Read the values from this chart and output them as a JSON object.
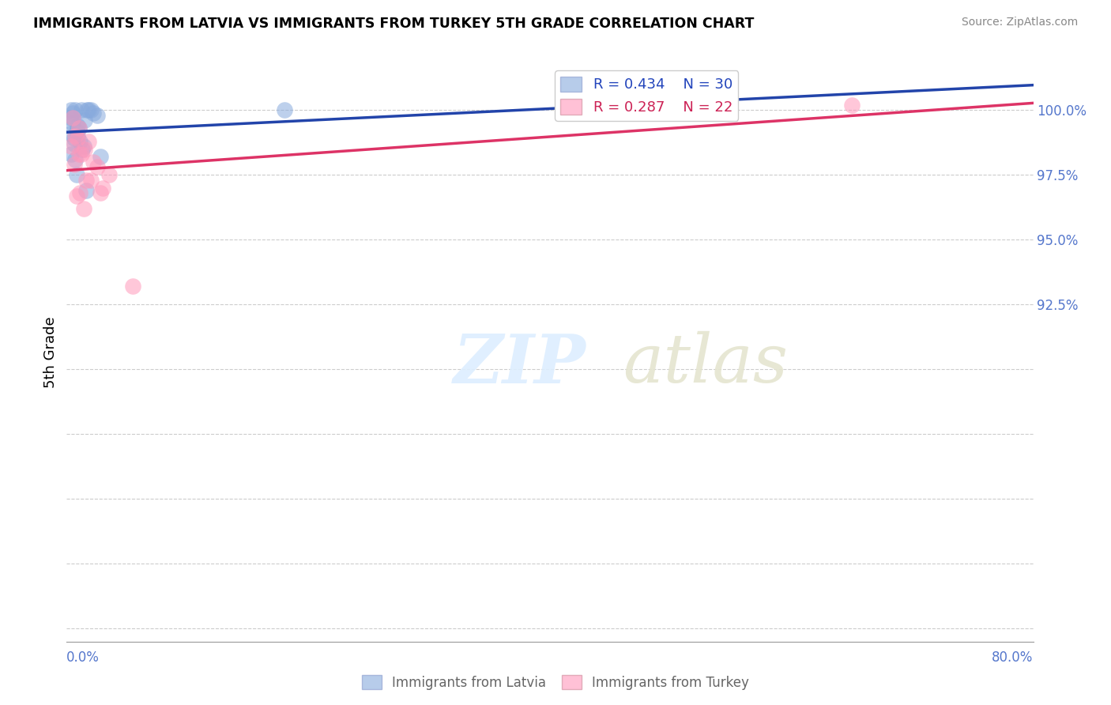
{
  "title": "IMMIGRANTS FROM LATVIA VS IMMIGRANTS FROM TURKEY 5TH GRADE CORRELATION CHART",
  "source": "Source: ZipAtlas.com",
  "ylabel": "5th Grade",
  "xlim": [
    0.0,
    80.0
  ],
  "ylim": [
    79.5,
    101.8
  ],
  "ytick_vals": [
    80.0,
    82.5,
    85.0,
    87.5,
    90.0,
    92.5,
    95.0,
    97.5,
    100.0
  ],
  "ytick_show": [
    "",
    "",
    "",
    "",
    "",
    "92.5%",
    "95.0%",
    "97.5%",
    "100.0%"
  ],
  "blue_color": "#88AADD",
  "pink_color": "#FF99BB",
  "blue_line_color": "#2244AA",
  "pink_line_color": "#DD3366",
  "legend_blue_R": "R = 0.434",
  "legend_blue_N": "N = 30",
  "legend_pink_R": "R = 0.287",
  "legend_pink_N": "N = 22",
  "latvia_x": [
    0.4,
    0.5,
    0.7,
    0.3,
    1.2,
    0.9,
    0.6,
    1.5,
    2.0,
    0.8,
    1.1,
    1.7,
    0.5,
    1.3,
    0.4,
    2.5,
    0.3,
    0.6,
    1.0,
    1.8,
    2.2,
    0.7,
    0.9,
    1.4,
    18.0,
    2.8,
    0.5,
    0.8,
    45.0,
    1.6
  ],
  "latvia_y": [
    100.0,
    99.9,
    100.0,
    99.7,
    100.0,
    99.4,
    98.9,
    99.6,
    100.0,
    99.2,
    98.8,
    100.0,
    99.5,
    98.5,
    98.3,
    99.8,
    99.1,
    98.7,
    99.3,
    100.0,
    99.9,
    98.1,
    99.0,
    98.6,
    100.0,
    98.2,
    99.7,
    97.5,
    100.0,
    96.9
  ],
  "turkey_x": [
    0.5,
    1.0,
    1.8,
    1.2,
    0.7,
    2.5,
    2.0,
    1.5,
    0.9,
    1.1,
    3.5,
    0.6,
    1.4,
    2.2,
    0.8,
    1.0,
    3.0,
    0.4,
    1.6,
    2.8,
    5.5,
    65.0
  ],
  "turkey_y": [
    99.7,
    99.3,
    98.8,
    98.3,
    99.0,
    97.8,
    97.3,
    98.5,
    98.9,
    96.8,
    97.5,
    97.9,
    96.2,
    98.0,
    96.7,
    98.3,
    97.0,
    98.6,
    97.3,
    96.8,
    93.2,
    100.2
  ]
}
